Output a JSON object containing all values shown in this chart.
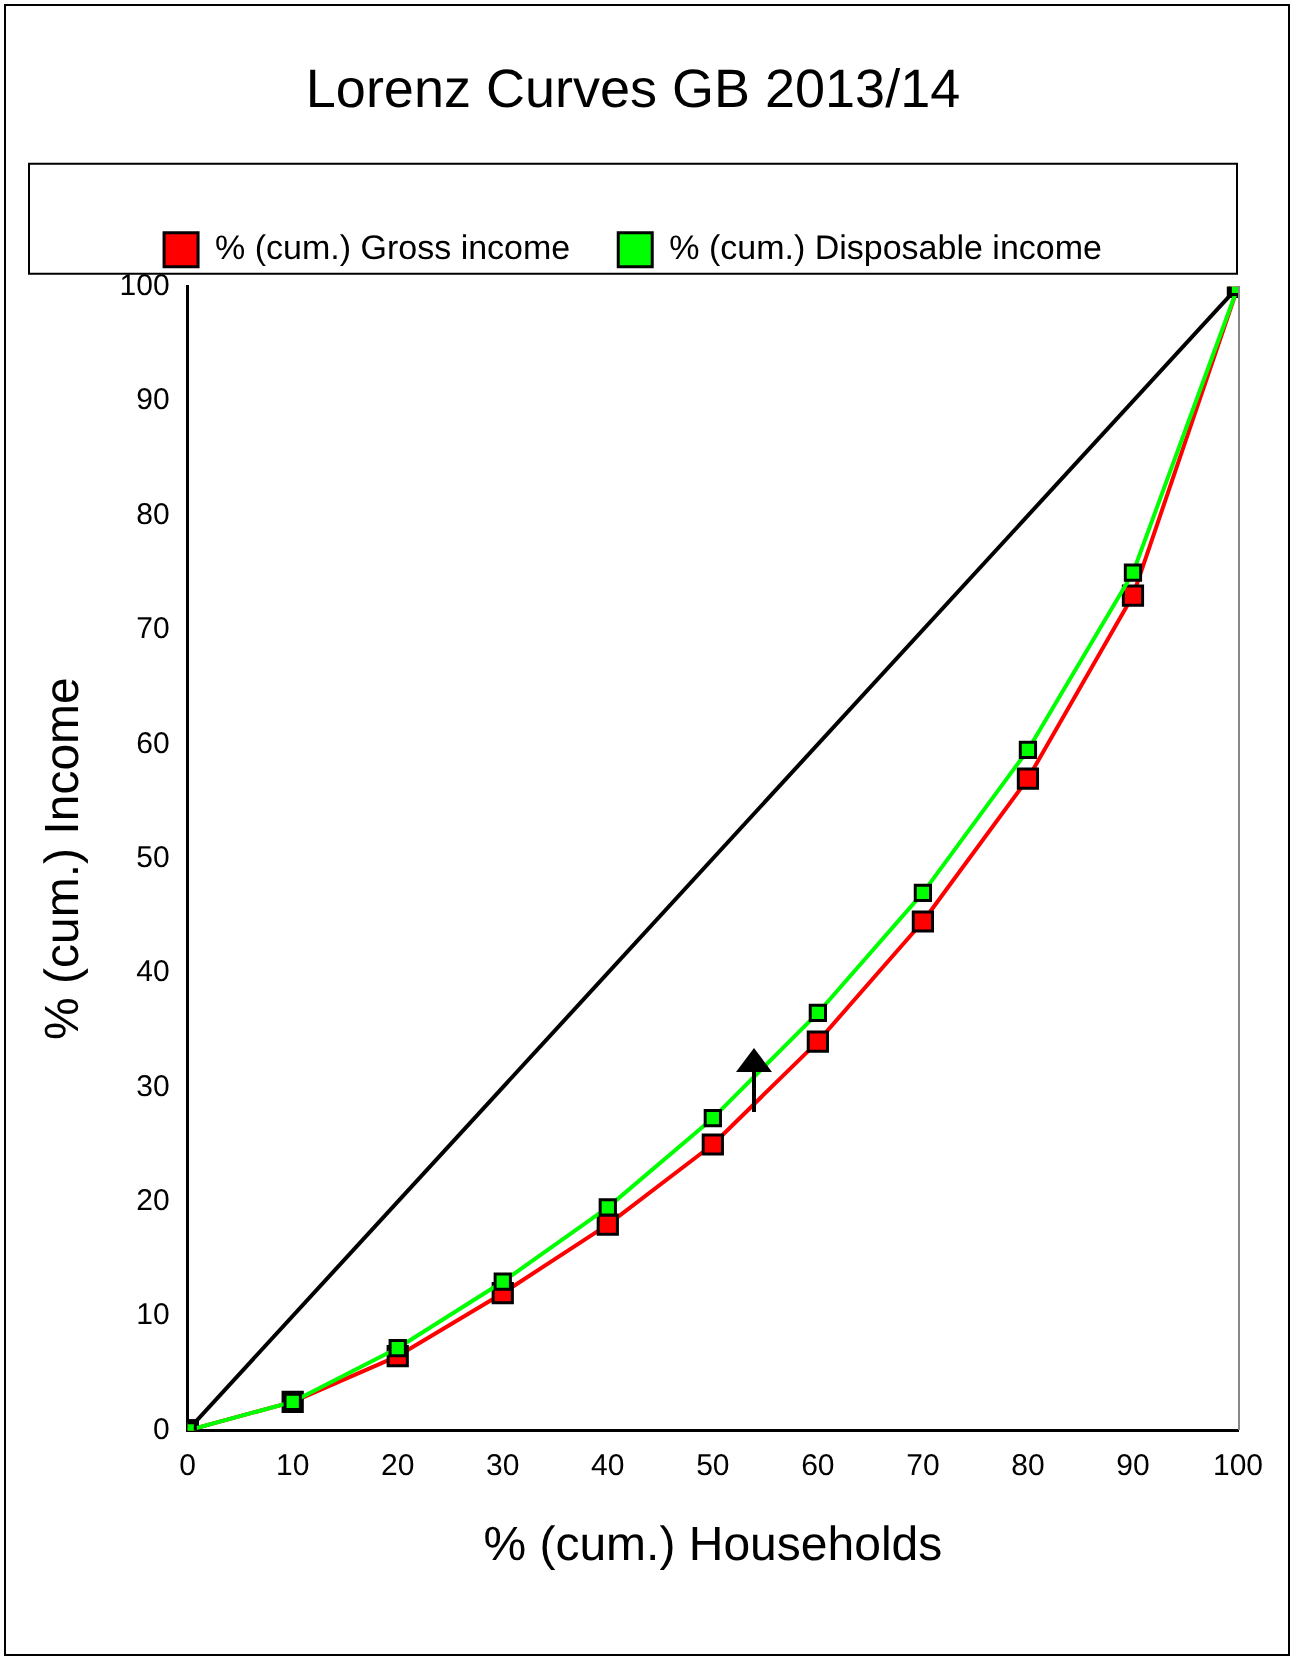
{
  "chart_data": {
    "type": "line",
    "title": "Lorenz Curves GB 2013/14",
    "xlabel": "% (cum.) Households",
    "ylabel": "% (cum.) Income",
    "x": [
      0,
      10,
      20,
      30,
      40,
      50,
      60,
      70,
      80,
      90,
      100
    ],
    "xlim": [
      0,
      100
    ],
    "xticks": [
      0,
      10,
      20,
      30,
      40,
      50,
      60,
      70,
      80,
      90,
      100
    ],
    "ylim": [
      0,
      100
    ],
    "yticks": [
      0,
      10,
      20,
      30,
      40,
      50,
      60,
      70,
      80,
      90,
      100
    ],
    "grid": false,
    "legend": "top",
    "marker": "square",
    "line_style": "solid",
    "series": [
      {
        "type": "line",
        "color": "#000000",
        "x": [
          0,
          100
        ],
        "values": [
          0,
          100
        ]
      },
      {
        "name": "% (cum.) Gross income",
        "color": "#ff0000",
        "values": [
          0,
          2.5,
          6.5,
          12,
          18,
          25,
          34,
          44.5,
          57,
          73,
          100
        ]
      },
      {
        "name": "% (cum.) Disposable income",
        "color": "#00ff00",
        "values": [
          0,
          2.5,
          7.2,
          13,
          19.5,
          27.3,
          36.5,
          47,
          59.5,
          75,
          100
        ]
      }
    ]
  }
}
